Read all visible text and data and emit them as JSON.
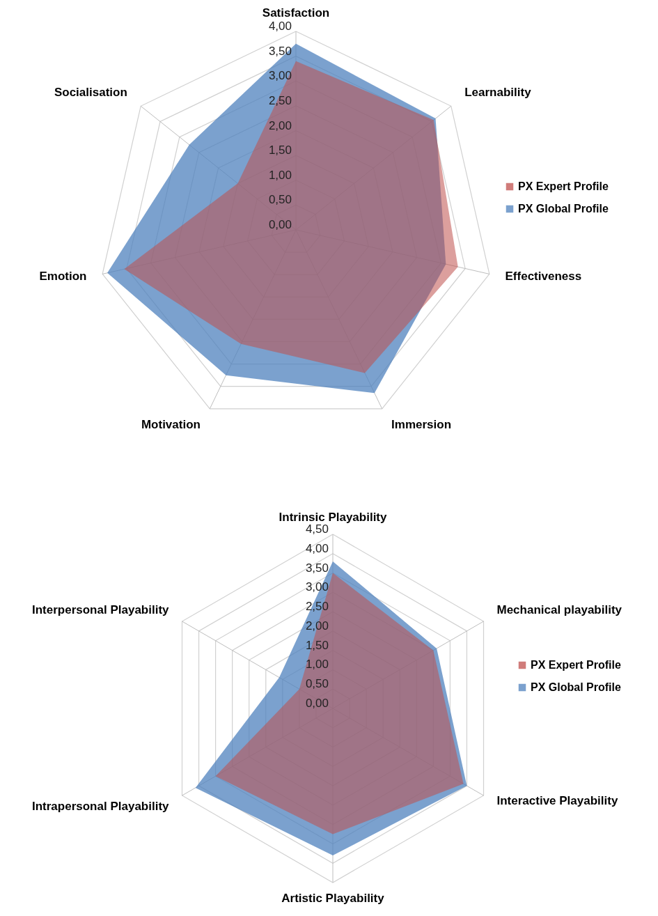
{
  "chart_data": [
    {
      "type": "radar",
      "categories": [
        "Satisfaction",
        "Learnability",
        "Effectiveness",
        "Immersion",
        "Motivation",
        "Emotion",
        "Socialisation"
      ],
      "series": [
        {
          "name": "PX Expert Profile",
          "color": "#c0504d",
          "values": [
            3.4,
            3.55,
            3.35,
            3.2,
            2.55,
            3.55,
            1.5
          ]
        },
        {
          "name": "PX Global Profile",
          "color": "#4f81bd",
          "values": [
            3.75,
            3.6,
            3.1,
            3.65,
            3.25,
            3.9,
            2.75
          ]
        }
      ],
      "ylim": [
        0,
        4
      ],
      "yticks": [
        {
          "value": 0,
          "label": "0,00"
        },
        {
          "value": 0.5,
          "label": "0,50"
        },
        {
          "value": 1,
          "label": "1,00"
        },
        {
          "value": 1.5,
          "label": "1,50"
        },
        {
          "value": 2,
          "label": "2,00"
        },
        {
          "value": 2.5,
          "label": "2,50"
        },
        {
          "value": 3,
          "label": "3,00"
        },
        {
          "value": 3.5,
          "label": "3,50"
        },
        {
          "value": 4,
          "label": "4,00"
        }
      ],
      "grid": true,
      "legend": "right"
    },
    {
      "type": "radar",
      "categories": [
        "Intrinsic Playability",
        "Mechanical playability",
        "Interactive Playability",
        "Artistic Playability",
        "Intrapersonal Playability",
        "Interpersonal Playability"
      ],
      "series": [
        {
          "name": "PX Expert Profile",
          "color": "#c0504d",
          "values": [
            3.5,
            3.0,
            3.9,
            3.25,
            3.5,
            1.0
          ]
        },
        {
          "name": "PX Global Profile",
          "color": "#4f81bd",
          "values": [
            3.8,
            3.1,
            4.0,
            3.8,
            4.1,
            1.6
          ]
        }
      ],
      "ylim": [
        0,
        4.5
      ],
      "yticks": [
        {
          "value": 0,
          "label": "0,00"
        },
        {
          "value": 0.5,
          "label": "0,50"
        },
        {
          "value": 1,
          "label": "1,00"
        },
        {
          "value": 1.5,
          "label": "1,50"
        },
        {
          "value": 2,
          "label": "2,00"
        },
        {
          "value": 2.5,
          "label": "2,50"
        },
        {
          "value": 3,
          "label": "3,00"
        },
        {
          "value": 3.5,
          "label": "3,50"
        },
        {
          "value": 4,
          "label": "4,00"
        },
        {
          "value": 4.5,
          "label": "4,50"
        }
      ],
      "grid": true,
      "legend": "right"
    }
  ]
}
